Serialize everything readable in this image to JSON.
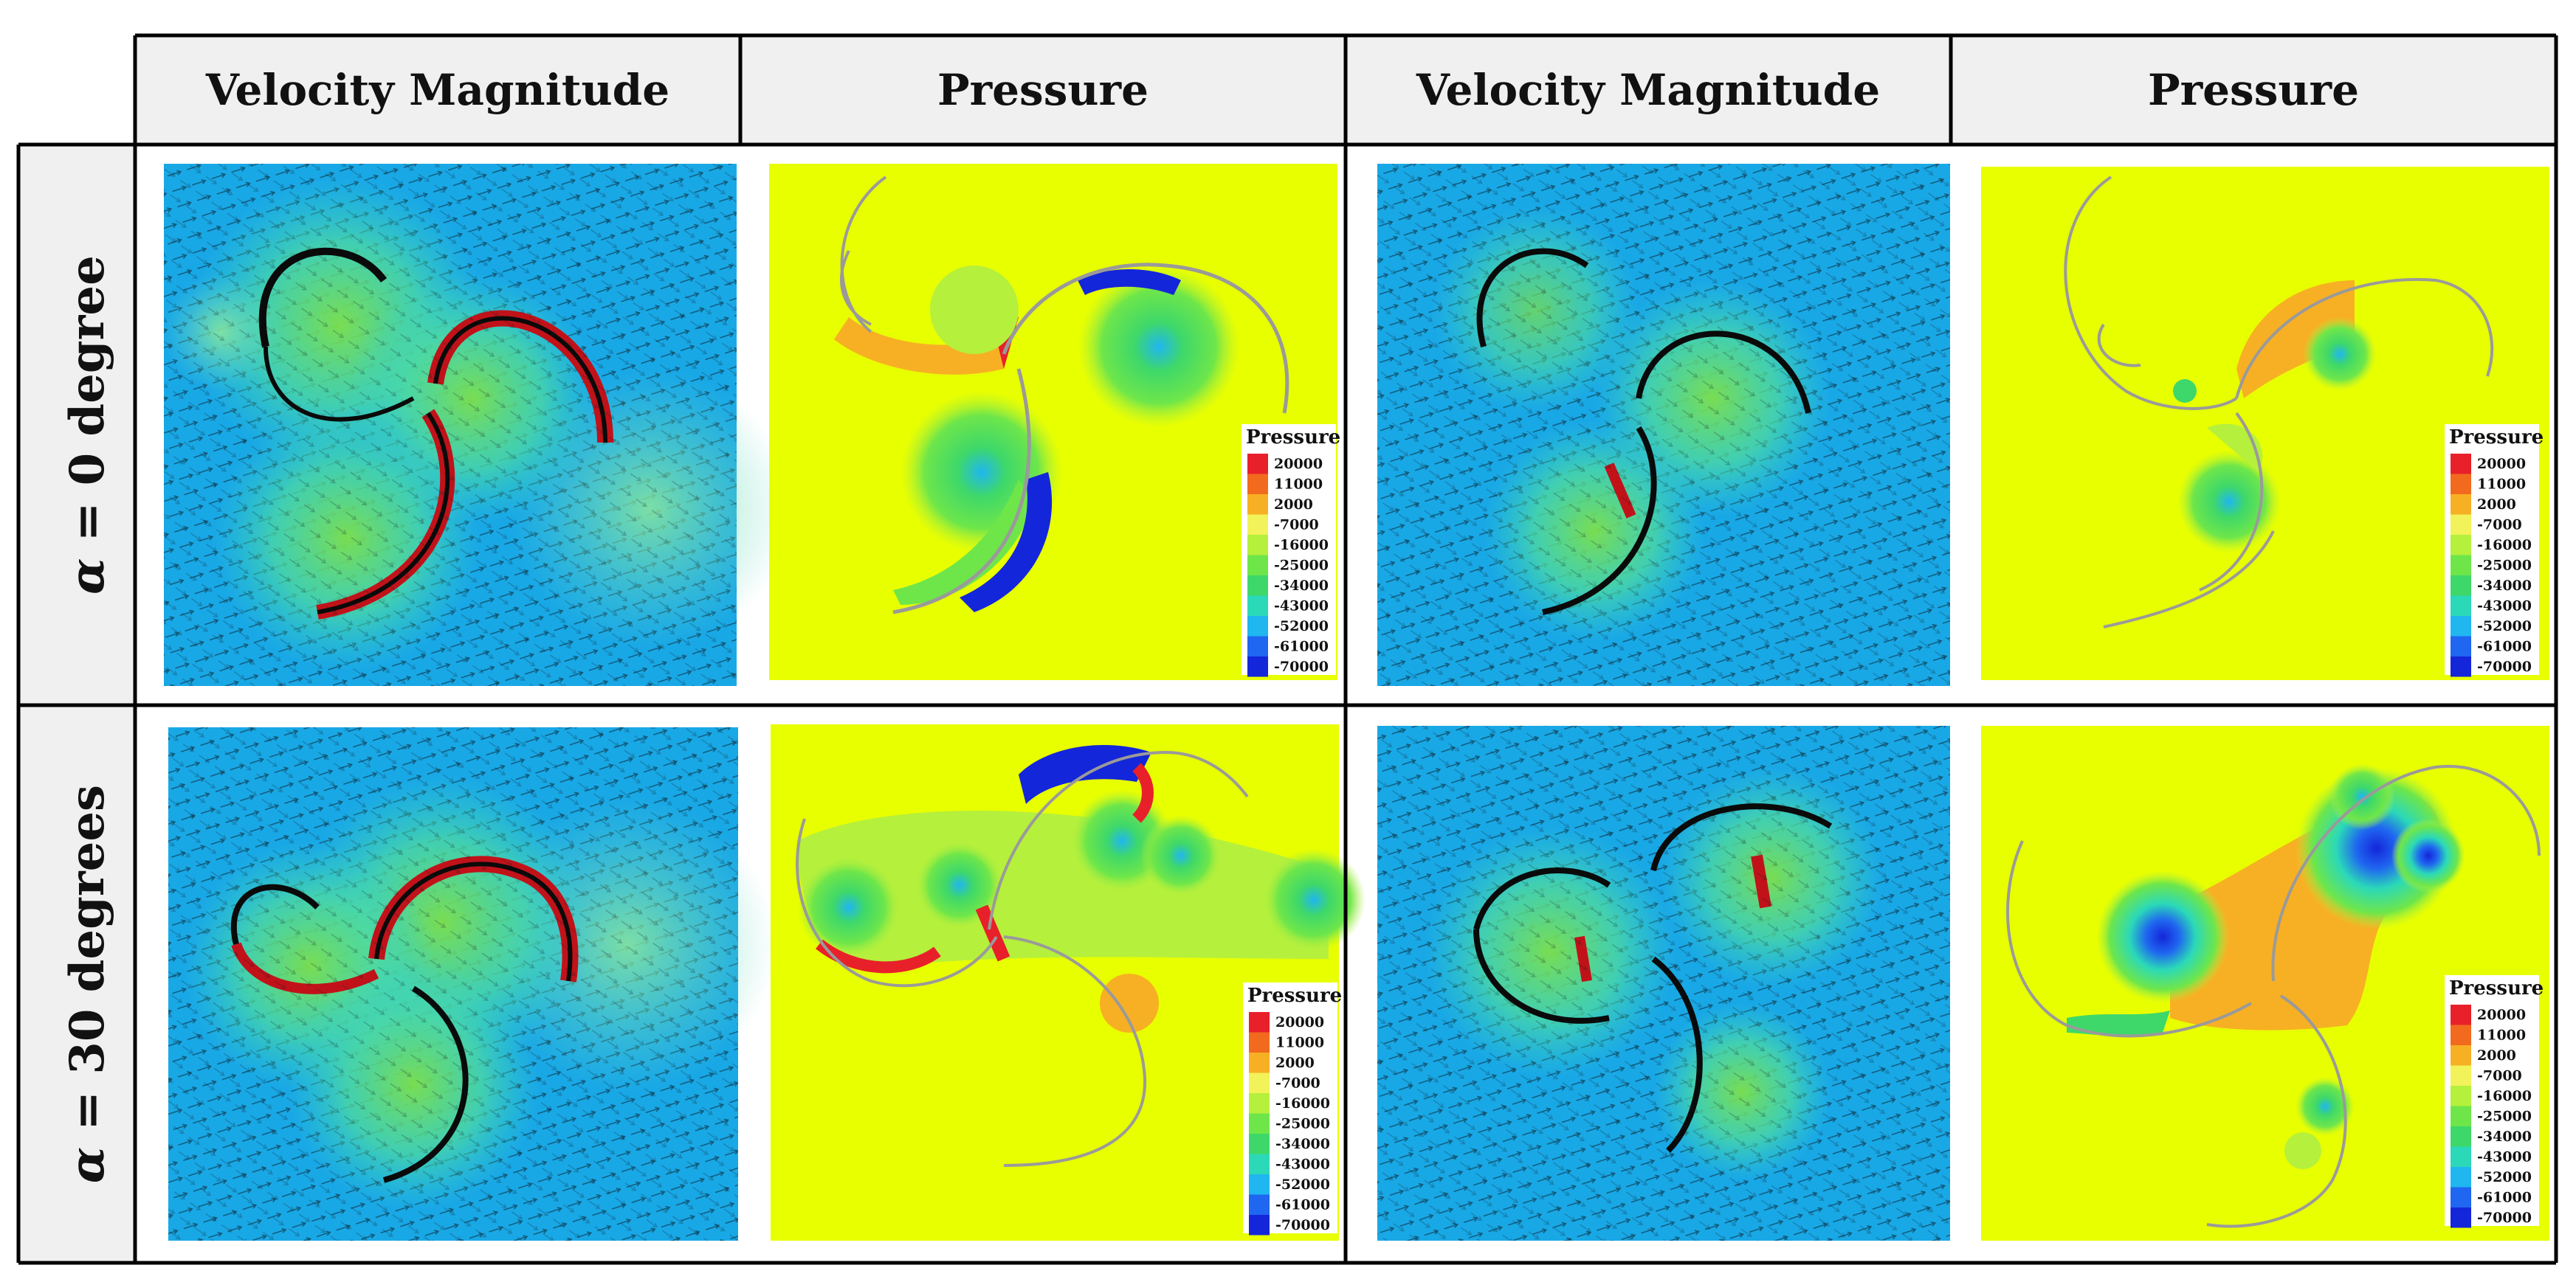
{
  "table": {
    "column_headers": [
      "Velocity Magnitude",
      "Pressure",
      "Velocity Magnitude",
      "Pressure"
    ],
    "row_headers": [
      {
        "symbol": "α",
        "text": " = 0 degree"
      },
      {
        "symbol": "α",
        "text": " = 30 degrees"
      }
    ]
  },
  "legend": {
    "title": "Pressure",
    "values": [
      "20000",
      "11000",
      "2000",
      "-7000",
      "-16000",
      "-25000",
      "-34000",
      "-43000",
      "-52000",
      "-61000",
      "-70000"
    ],
    "colors": [
      "#e8202a",
      "#f26a1e",
      "#f7b023",
      "#f2f25a",
      "#b5f03c",
      "#6ee64a",
      "#3ed86a",
      "#2bd9b8",
      "#20b6f0",
      "#1f66f0",
      "#1426d9"
    ]
  },
  "colors": {
    "header_bg": "#f0f0f0",
    "velocity_bg": "#19a8e6",
    "pressure_bg": "#e8ff00",
    "grid_line": "#000000"
  }
}
